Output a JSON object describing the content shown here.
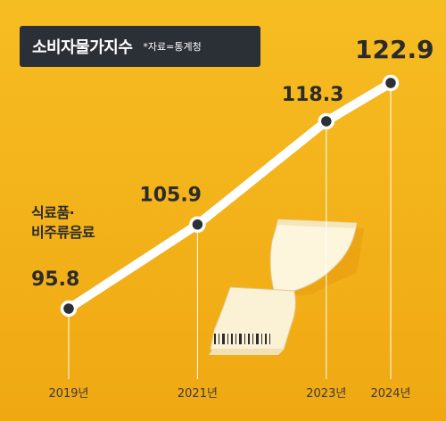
{
  "chart_data": {
    "type": "line",
    "title": "소비자물가지수",
    "source": "*자료=통계청",
    "x": [
      "2019년",
      "2021년",
      "2023년",
      "2024년"
    ],
    "series": [
      {
        "name": "식료품·\n비주류음료",
        "values": [
          95.8,
          105.9,
          118.3,
          122.9
        ],
        "value_labels": [
          "95.8",
          "105.9",
          "118.3",
          "122.9"
        ]
      }
    ],
    "colors": {
      "background": "#f4b51b",
      "line": "#ffffff",
      "marker_fill": "#2b2f36",
      "text": "#2b2b2b",
      "title_bg": "#2b2f36"
    }
  }
}
